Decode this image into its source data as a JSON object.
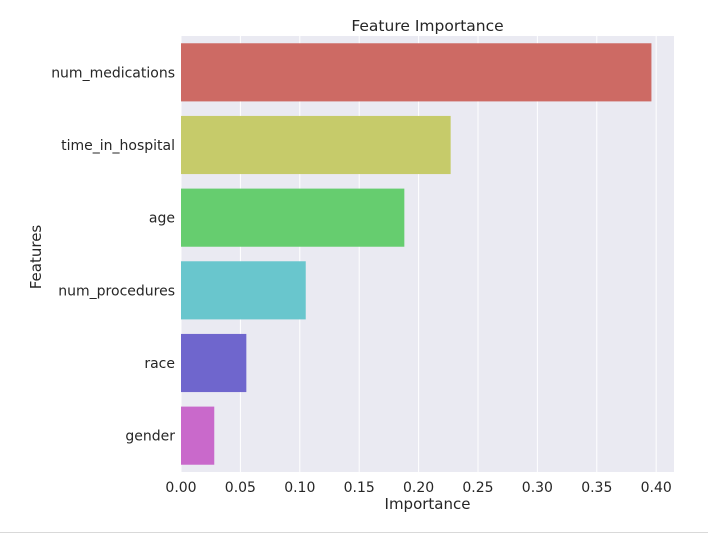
{
  "chart_data": {
    "type": "bar",
    "orientation": "horizontal",
    "title": "Feature Importance",
    "xlabel": "Importance",
    "ylabel": "Features",
    "categories": [
      "num_medications",
      "time_in_hospital",
      "age",
      "num_procedures",
      "race",
      "gender"
    ],
    "values": [
      0.396,
      0.227,
      0.188,
      0.105,
      0.055,
      0.028
    ],
    "colors": [
      "#cd6a64",
      "#c6cb6a",
      "#66cd6f",
      "#69c6cd",
      "#6f66cd",
      "#c969cb"
    ],
    "xlim": [
      0,
      0.415
    ],
    "xticks": [
      0.0,
      0.05,
      0.1,
      0.15,
      0.2,
      0.25,
      0.3,
      0.35,
      0.4
    ],
    "xtick_labels": [
      "0.00",
      "0.05",
      "0.10",
      "0.15",
      "0.20",
      "0.25",
      "0.30",
      "0.35",
      "0.40"
    ],
    "grid": true,
    "background": "#eaeaf2"
  }
}
